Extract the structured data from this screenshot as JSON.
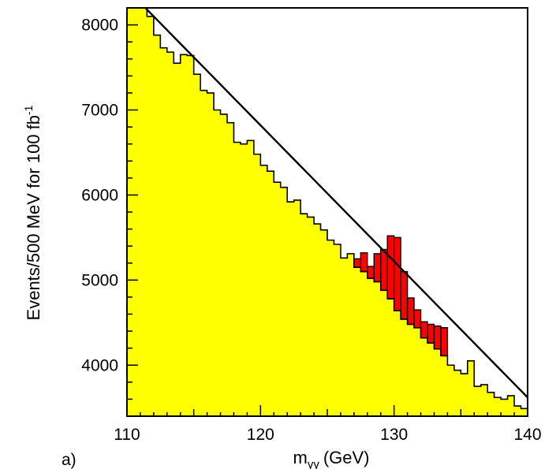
{
  "panel_label": "a)",
  "chart_data": {
    "type": "histogram",
    "title": "",
    "xlabel": "m",
    "xlabel_subscript": "γγ",
    "xlabel_unit": "(GeV)",
    "ylabel": "Events/500 MeV for 100 fb",
    "ylabel_superscript": "-1",
    "xlim": [
      110,
      140
    ],
    "ylim": [
      3400,
      8200
    ],
    "xticks": [
      110,
      120,
      130,
      140
    ],
    "yticks": [
      4000,
      5000,
      6000,
      7000,
      8000
    ],
    "grid": false,
    "legend": "none",
    "bin_width": 0.5,
    "bin_start": 110,
    "colors": {
      "background_fill": "#ffff00",
      "signal_fill": "#ff0000",
      "line": "#000000",
      "frame": "#000000"
    },
    "series": [
      {
        "role": "background_histogram",
        "values": [
          8450,
          8300,
          8200,
          8100,
          7880,
          7730,
          7680,
          7550,
          7650,
          7640,
          7420,
          7230,
          7200,
          7000,
          6950,
          6850,
          6620,
          6600,
          6640,
          6480,
          6350,
          6280,
          6150,
          6090,
          5920,
          5940,
          5780,
          5740,
          5660,
          5590,
          5470,
          5420,
          5260,
          5310,
          5150,
          5100,
          5020,
          4980,
          4880,
          4780,
          4640,
          4540,
          4480,
          4440,
          4320,
          4260,
          4190,
          4110,
          4000,
          3940,
          3900,
          4050,
          3750,
          3770,
          3680,
          3620,
          3600,
          3640,
          3520,
          3490
        ]
      },
      {
        "role": "signal_on_background",
        "x_range": [
          127,
          134
        ],
        "values": [
          5250,
          5320,
          5160,
          5310,
          5360,
          5520,
          5500,
          5100,
          4790,
          4650,
          4510,
          4480,
          4460,
          4440
        ]
      },
      {
        "role": "background_fit",
        "x": [
          110,
          140
        ],
        "y": [
          8420,
          3620
        ]
      }
    ]
  }
}
